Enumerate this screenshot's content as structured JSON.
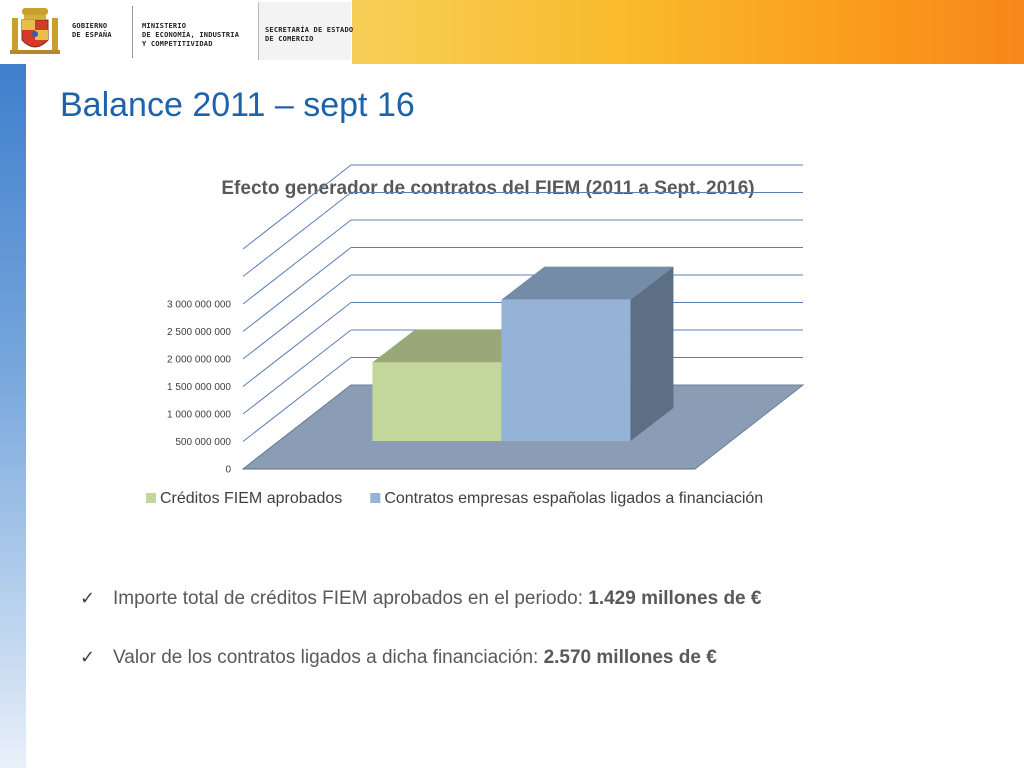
{
  "header": {
    "gov_text": "GOBIERNO\nDE ESPAÑA",
    "ministry_text": "MINISTERIO\nDE ECONOMÍA, INDUSTRIA\nY COMPETITIVIDAD",
    "secretaria_text": "SECRETARÍA DE ESTADO\nDE COMERCIO"
  },
  "page": {
    "title": "Balance 2011 – sept 16"
  },
  "chart_data": {
    "type": "bar",
    "title": "Efecto generador de contratos del FIEM (2011 a Sept. 2016)",
    "three_d": true,
    "categories": [
      ""
    ],
    "series": [
      {
        "name": "Créditos FIEM aprobados",
        "values": [
          1429000000
        ],
        "color": "#c4d79b"
      },
      {
        "name": "Contratos empresas españolas ligados a financiación",
        "values": [
          2570000000
        ],
        "color": "#95b3d7"
      }
    ],
    "ylim": [
      0,
      3000000000
    ],
    "yticks": [
      "0",
      "500 000 000",
      "1 000 000 000",
      "1 500 000 000",
      "2 000 000 000",
      "2 500 000 000",
      "3 000 000 000"
    ],
    "grid": true,
    "legend": "bottom",
    "xlabel": "",
    "ylabel": ""
  },
  "bullets": [
    {
      "text": "Importe total de créditos FIEM aprobados en el periodo: ",
      "value": "1.429 millones de €"
    },
    {
      "text": "Valor de los contratos ligados a dicha financiación: ",
      "value": "2.570  millones de €"
    }
  ],
  "icons": {
    "bullet": "checkmark-icon"
  }
}
